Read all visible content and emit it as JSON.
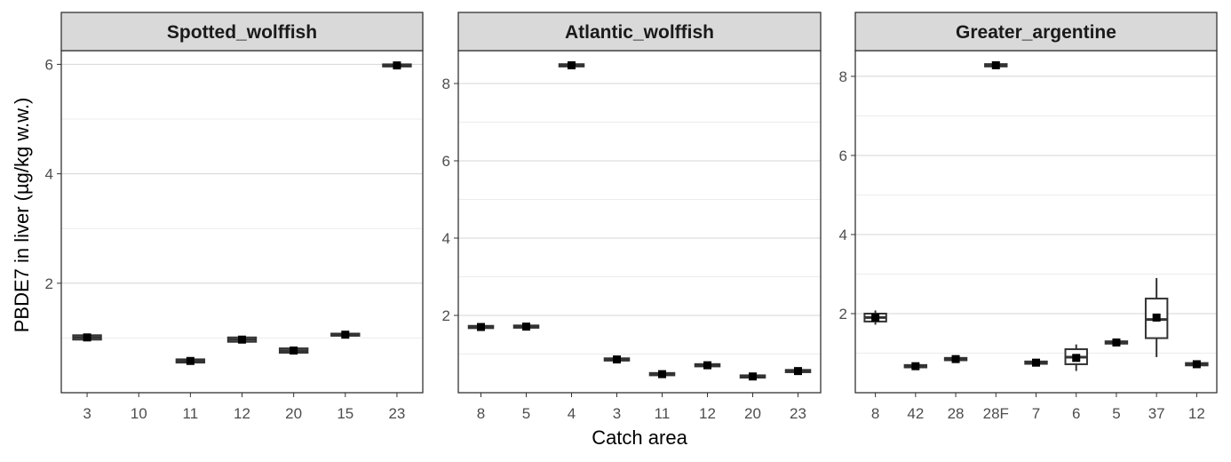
{
  "chart_data": {
    "type": "boxplot",
    "xlabel": "Catch area",
    "ylabel": "PBDE7 in liver (µg/kg w.w.)",
    "grid": true,
    "facet_scales": "free",
    "colors": {
      "strip_bg": "#d9d9d9",
      "panel_border": "#333333",
      "grid_major": "#d4d4d4",
      "grid_minor": "#ececec",
      "box": "#333333",
      "mean_marker": "#000000"
    },
    "panels": [
      {
        "title": "Spotted_wolffish",
        "ylim": [
          0.0,
          6.25
        ],
        "yticks": [
          2,
          4,
          6
        ],
        "yminor": [
          1,
          3,
          5
        ],
        "categories": [
          "3",
          "10",
          "11",
          "12",
          "20",
          "15",
          "23"
        ],
        "boxes": [
          {
            "x": "3",
            "q1": 0.97,
            "median": 1.01,
            "q3": 1.05,
            "whisker_low": 0.97,
            "whisker_high": 1.05,
            "mean": 1.01
          },
          {
            "x": "10",
            "q1": null,
            "median": null,
            "q3": null,
            "whisker_low": null,
            "whisker_high": null,
            "mean": null
          },
          {
            "x": "11",
            "q1": 0.55,
            "median": 0.58,
            "q3": 0.61,
            "whisker_low": 0.55,
            "whisker_high": 0.61,
            "mean": 0.58
          },
          {
            "x": "12",
            "q1": 0.93,
            "median": 0.97,
            "q3": 1.01,
            "whisker_low": 0.93,
            "whisker_high": 1.01,
            "mean": 0.97
          },
          {
            "x": "20",
            "q1": 0.73,
            "median": 0.77,
            "q3": 0.81,
            "whisker_low": 0.73,
            "whisker_high": 0.81,
            "mean": 0.77
          },
          {
            "x": "15",
            "q1": 1.04,
            "median": 1.06,
            "q3": 1.08,
            "whisker_low": 1.04,
            "whisker_high": 1.08,
            "mean": 1.06
          },
          {
            "x": "23",
            "q1": 5.96,
            "median": 5.98,
            "q3": 6.0,
            "whisker_low": 5.96,
            "whisker_high": 6.0,
            "mean": 5.98
          }
        ]
      },
      {
        "title": "Atlantic_wolffish",
        "ylim": [
          0.0,
          8.85
        ],
        "yticks": [
          2,
          4,
          6,
          8
        ],
        "yminor": [
          1,
          3,
          5,
          7
        ],
        "categories": [
          "8",
          "5",
          "4",
          "3",
          "11",
          "12",
          "20",
          "23"
        ],
        "boxes": [
          {
            "x": "8",
            "q1": 1.67,
            "median": 1.7,
            "q3": 1.73,
            "whisker_low": 1.67,
            "whisker_high": 1.73,
            "mean": 1.7
          },
          {
            "x": "5",
            "q1": 1.68,
            "median": 1.71,
            "q3": 1.74,
            "whisker_low": 1.68,
            "whisker_high": 1.74,
            "mean": 1.71
          },
          {
            "x": "4",
            "q1": 8.44,
            "median": 8.47,
            "q3": 8.5,
            "whisker_low": 8.44,
            "whisker_high": 8.5,
            "mean": 8.47
          },
          {
            "x": "3",
            "q1": 0.83,
            "median": 0.86,
            "q3": 0.89,
            "whisker_low": 0.83,
            "whisker_high": 0.89,
            "mean": 0.86
          },
          {
            "x": "11",
            "q1": 0.45,
            "median": 0.48,
            "q3": 0.51,
            "whisker_low": 0.45,
            "whisker_high": 0.51,
            "mean": 0.48
          },
          {
            "x": "12",
            "q1": 0.68,
            "median": 0.71,
            "q3": 0.74,
            "whisker_low": 0.68,
            "whisker_high": 0.74,
            "mean": 0.71
          },
          {
            "x": "20",
            "q1": 0.39,
            "median": 0.42,
            "q3": 0.45,
            "whisker_low": 0.39,
            "whisker_high": 0.45,
            "mean": 0.42
          },
          {
            "x": "23",
            "q1": 0.53,
            "median": 0.56,
            "q3": 0.59,
            "whisker_low": 0.53,
            "whisker_high": 0.59,
            "mean": 0.56
          }
        ]
      },
      {
        "title": "Greater_argentine",
        "ylim": [
          0.0,
          8.65
        ],
        "yticks": [
          2,
          4,
          6,
          8
        ],
        "yminor": [
          1,
          3,
          5,
          7
        ],
        "categories": [
          "8",
          "42",
          "28",
          "28F",
          "7",
          "6",
          "5",
          "37",
          "12"
        ],
        "boxes": [
          {
            "x": "8",
            "q1": 1.8,
            "median": 1.9,
            "q3": 2.0,
            "whisker_low": 1.72,
            "whisker_high": 2.08,
            "mean": 1.9
          },
          {
            "x": "42",
            "q1": 0.64,
            "median": 0.67,
            "q3": 0.7,
            "whisker_low": 0.64,
            "whisker_high": 0.7,
            "mean": 0.67
          },
          {
            "x": "28",
            "q1": 0.82,
            "median": 0.85,
            "q3": 0.88,
            "whisker_low": 0.82,
            "whisker_high": 0.88,
            "mean": 0.85
          },
          {
            "x": "28F",
            "q1": 8.25,
            "median": 8.28,
            "q3": 8.31,
            "whisker_low": 8.25,
            "whisker_high": 8.31,
            "mean": 8.28
          },
          {
            "x": "7",
            "q1": 0.73,
            "median": 0.76,
            "q3": 0.79,
            "whisker_low": 0.73,
            "whisker_high": 0.79,
            "mean": 0.76
          },
          {
            "x": "6",
            "q1": 0.72,
            "median": 0.9,
            "q3": 1.1,
            "whisker_low": 0.55,
            "whisker_high": 1.22,
            "mean": 0.88
          },
          {
            "x": "5",
            "q1": 1.24,
            "median": 1.27,
            "q3": 1.3,
            "whisker_low": 1.24,
            "whisker_high": 1.3,
            "mean": 1.27
          },
          {
            "x": "37",
            "q1": 1.38,
            "median": 1.85,
            "q3": 2.38,
            "whisker_low": 0.9,
            "whisker_high": 2.9,
            "mean": 1.9
          },
          {
            "x": "12",
            "q1": 0.69,
            "median": 0.72,
            "q3": 0.75,
            "whisker_low": 0.69,
            "whisker_high": 0.75,
            "mean": 0.72
          }
        ]
      }
    ]
  }
}
